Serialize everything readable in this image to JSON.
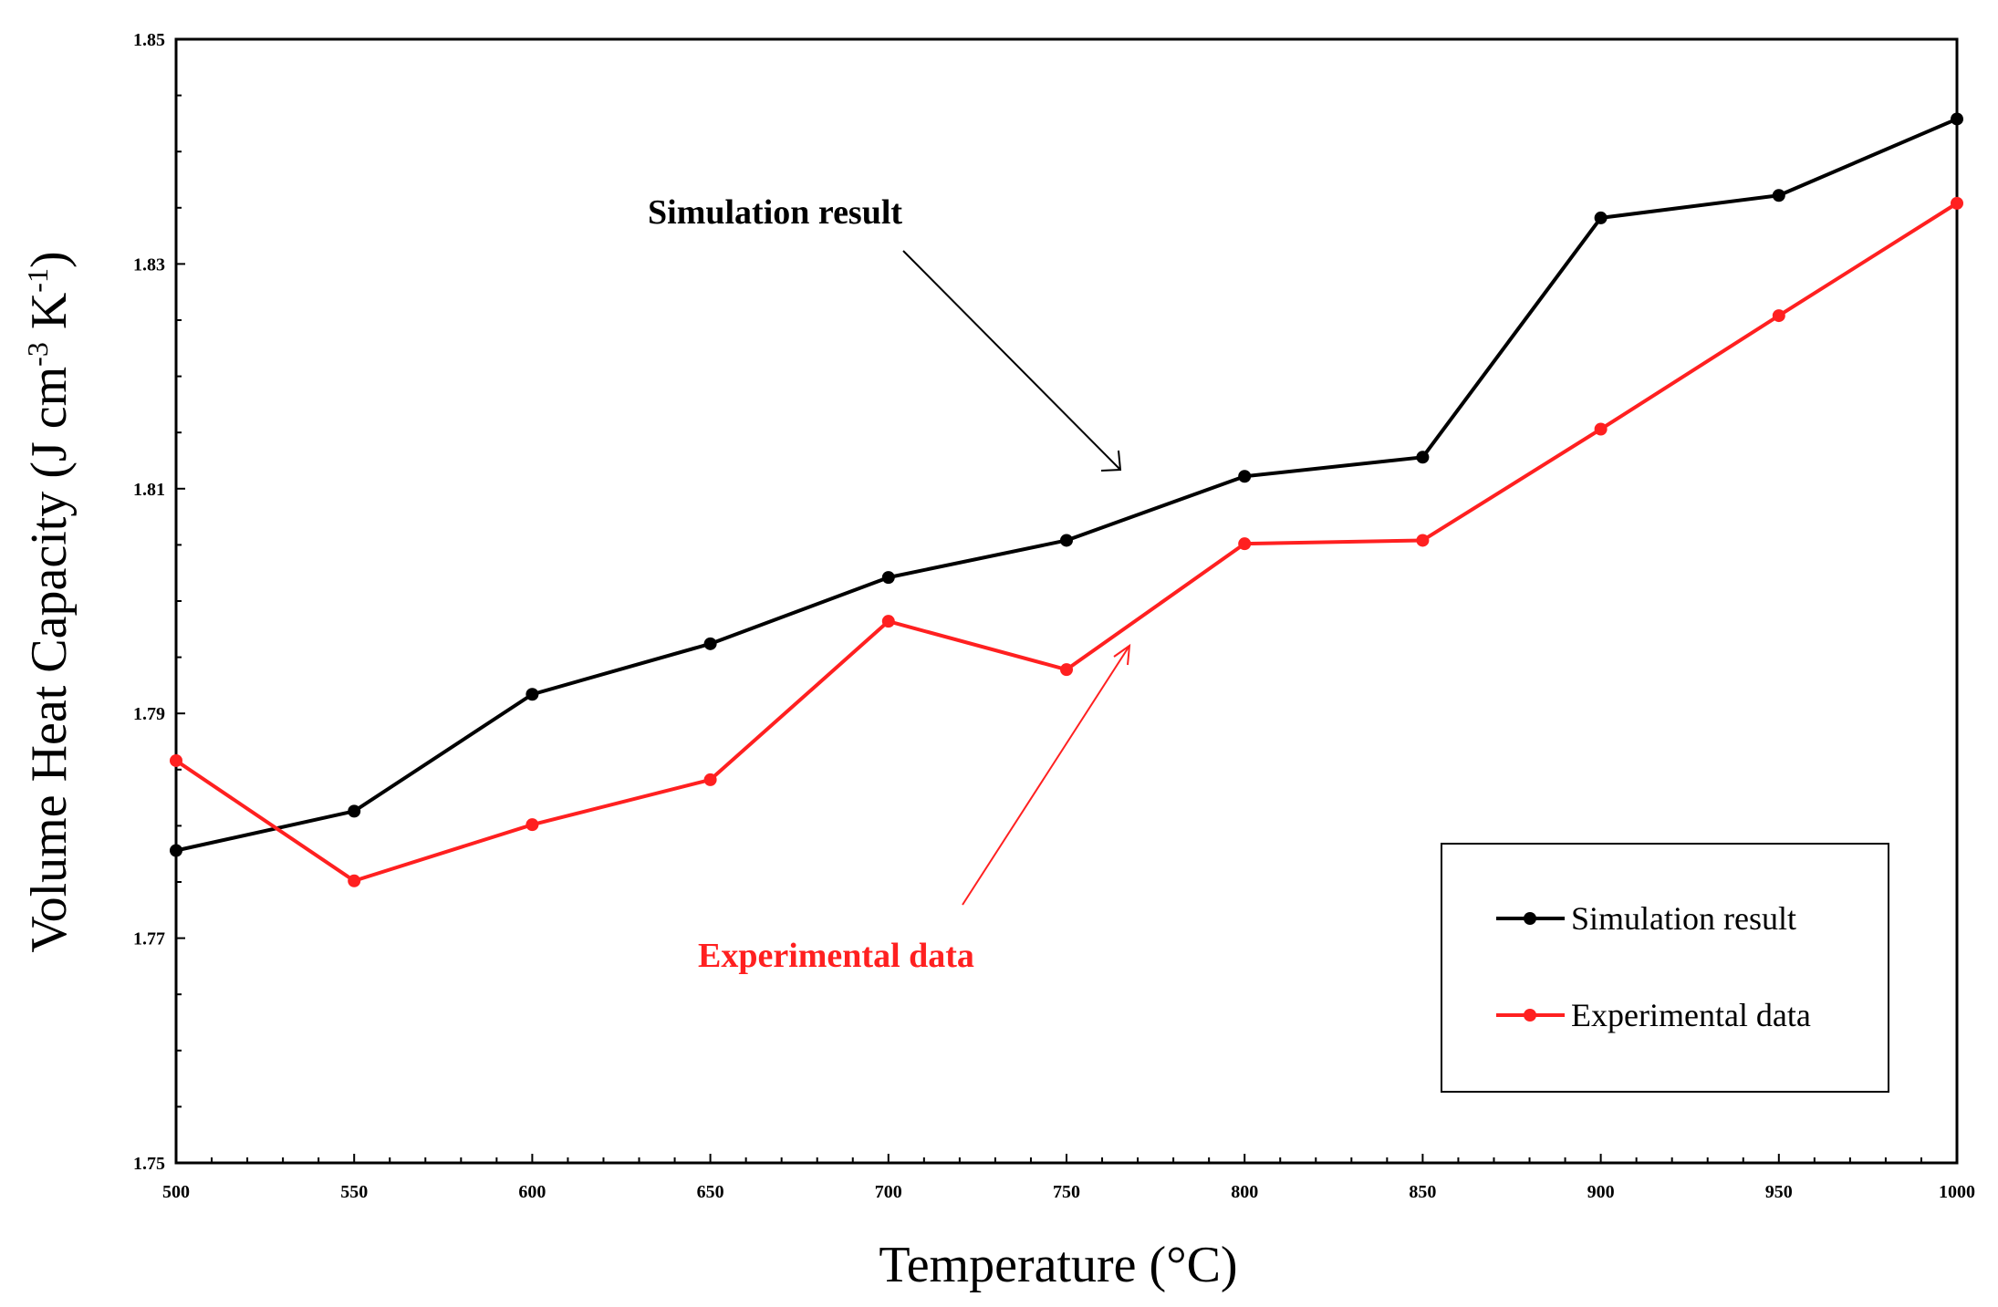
{
  "chart_data": {
    "type": "line",
    "title": "",
    "xlabel": "Temperature (°C)",
    "ylabel_main": "Volume Heat Capacity (J cm",
    "ylabel_sup1": "-3",
    "ylabel_mid": " K",
    "ylabel_sup2": "-1",
    "ylabel_end": ")",
    "xlim": [
      500,
      1000
    ],
    "ylim": [
      1.75,
      1.85
    ],
    "x_ticks": [
      500,
      550,
      600,
      650,
      700,
      750,
      800,
      850,
      900,
      950,
      1000
    ],
    "y_ticks": [
      "1.75",
      "1.77",
      "1.79",
      "1.81",
      "1.83",
      "1.85"
    ],
    "x": [
      500,
      550,
      600,
      650,
      700,
      750,
      800,
      850,
      900,
      950,
      1000
    ],
    "series": [
      {
        "name": "Simulation result",
        "color": "#000000",
        "values": [
          1.7778,
          1.7813,
          1.7917,
          1.7962,
          1.8021,
          1.8054,
          1.8111,
          1.8128,
          1.8341,
          1.8361,
          1.8429
        ]
      },
      {
        "name": "Experimental data",
        "color": "#ff2020",
        "values": [
          1.7858,
          1.7751,
          1.7801,
          1.7841,
          1.7982,
          1.7939,
          1.8051,
          1.8054,
          1.8153,
          1.8254,
          1.8354
        ]
      }
    ],
    "annotations": [
      {
        "text": "Simulation result",
        "color": "#000000"
      },
      {
        "text": "Experimental data",
        "color": "#ff2020"
      }
    ],
    "legend": {
      "position": "bottom-right",
      "entries": [
        "Simulation result",
        "Experimental data"
      ]
    },
    "grid": false
  }
}
